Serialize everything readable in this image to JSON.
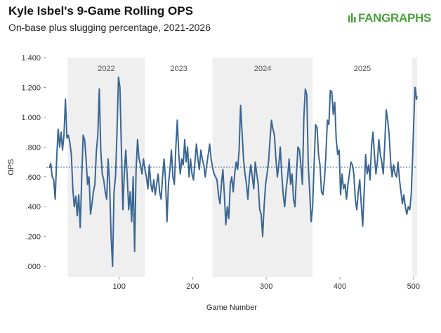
{
  "header": {
    "title": "Kyle Isbel's 9-Game Rolling OPS",
    "subtitle": "On-base plus slugging percentage, 2021-2026",
    "logo_fan": "FAN",
    "logo_graphs": "GRAPHS"
  },
  "colors": {
    "line": "#3a6693",
    "band": "#efefef",
    "average": "#3a6693",
    "logo": "#4ca13c"
  },
  "chart_data": {
    "type": "line",
    "title": "Kyle Isbel's 9-Game Rolling OPS",
    "subtitle": "On-base plus slugging percentage, 2021-2026",
    "xlabel": "Game Number",
    "ylabel": "OPS",
    "xlim": [
      1,
      505
    ],
    "ylim": [
      -0.07,
      1.4
    ],
    "x_ticks": [
      100,
      200,
      300,
      400,
      500
    ],
    "x_tick_labels": [
      "100",
      "200",
      "300",
      "400",
      "500"
    ],
    "y_ticks": [
      0.0,
      0.2,
      0.4,
      0.6,
      0.8,
      1.0,
      1.2,
      1.4
    ],
    "y_tick_labels": [
      ".000",
      ".200",
      ".400",
      ".600",
      ".800",
      "1.000",
      "1.200",
      "1.400"
    ],
    "grid": false,
    "league_average": 0.665,
    "seasons": [
      {
        "label": "",
        "start": 1,
        "end": 30,
        "shaded": false
      },
      {
        "label": "2022",
        "start": 30,
        "end": 135,
        "shaded": true
      },
      {
        "label": "2023",
        "start": 135,
        "end": 227,
        "shaded": false
      },
      {
        "label": "2024",
        "start": 227,
        "end": 363,
        "shaded": true
      },
      {
        "label": "2025",
        "start": 363,
        "end": 498,
        "shaded": false
      },
      {
        "label": "",
        "start": 498,
        "end": 505,
        "shaded": true
      }
    ],
    "series": [
      {
        "name": "",
        "points": [
          [
            5,
            0.66
          ],
          [
            7,
            0.69
          ],
          [
            9,
            0.6
          ],
          [
            11,
            0.58
          ],
          [
            13,
            0.45
          ],
          [
            15,
            0.72
          ],
          [
            17,
            0.92
          ],
          [
            19,
            0.8
          ],
          [
            21,
            0.9
          ],
          [
            23,
            0.78
          ],
          [
            25,
            0.88
          ],
          [
            27,
            1.12
          ],
          [
            29,
            0.86
          ],
          [
            31,
            0.88
          ],
          [
            33,
            0.83
          ],
          [
            35,
            0.75
          ],
          [
            37,
            0.52
          ],
          [
            39,
            0.4
          ],
          [
            41,
            0.47
          ],
          [
            43,
            0.34
          ],
          [
            45,
            0.48
          ],
          [
            47,
            0.26
          ],
          [
            49,
            0.58
          ],
          [
            51,
            0.88
          ],
          [
            53,
            0.85
          ],
          [
            55,
            0.72
          ],
          [
            57,
            0.55
          ],
          [
            59,
            0.6
          ],
          [
            61,
            0.35
          ],
          [
            63,
            0.42
          ],
          [
            65,
            0.5
          ],
          [
            67,
            0.55
          ],
          [
            69,
            0.77
          ],
          [
            71,
            0.88
          ],
          [
            73,
            1.19
          ],
          [
            75,
            0.78
          ],
          [
            77,
            0.62
          ],
          [
            79,
            0.58
          ],
          [
            81,
            0.5
          ],
          [
            83,
            0.45
          ],
          [
            85,
            0.72
          ],
          [
            87,
            0.55
          ],
          [
            89,
            0.2
          ],
          [
            91,
            0.0
          ],
          [
            93,
            0.5
          ],
          [
            95,
            0.6
          ],
          [
            97,
            0.9
          ],
          [
            99,
            1.27
          ],
          [
            101,
            1.2
          ],
          [
            103,
            0.78
          ],
          [
            105,
            0.38
          ],
          [
            107,
            0.62
          ],
          [
            109,
            0.78
          ],
          [
            111,
            0.6
          ],
          [
            113,
            0.38
          ],
          [
            115,
            0.5
          ],
          [
            117,
            0.3
          ],
          [
            119,
            0.6
          ],
          [
            121,
            0.1
          ],
          [
            123,
            0.65
          ],
          [
            125,
            0.85
          ],
          [
            127,
            0.72
          ],
          [
            129,
            0.68
          ],
          [
            131,
            0.62
          ],
          [
            133,
            0.72
          ],
          [
            135,
            0.65
          ],
          [
            137,
            0.6
          ],
          [
            139,
            0.52
          ],
          [
            141,
            0.68
          ],
          [
            143,
            0.55
          ],
          [
            145,
            0.5
          ],
          [
            147,
            0.58
          ],
          [
            149,
            0.48
          ],
          [
            151,
            0.55
          ],
          [
            153,
            0.62
          ],
          [
            155,
            0.5
          ],
          [
            157,
            0.45
          ],
          [
            159,
            0.6
          ],
          [
            161,
            0.72
          ],
          [
            163,
            0.58
          ],
          [
            165,
            0.3
          ],
          [
            167,
            0.55
          ],
          [
            169,
            0.65
          ],
          [
            171,
            0.78
          ],
          [
            173,
            0.6
          ],
          [
            175,
            0.55
          ],
          [
            177,
            0.8
          ],
          [
            179,
            0.98
          ],
          [
            181,
            0.75
          ],
          [
            183,
            0.62
          ],
          [
            185,
            0.72
          ],
          [
            187,
            0.68
          ],
          [
            189,
            0.85
          ],
          [
            191,
            0.7
          ],
          [
            193,
            0.8
          ],
          [
            195,
            0.6
          ],
          [
            197,
            0.72
          ],
          [
            199,
            0.62
          ],
          [
            201,
            0.58
          ],
          [
            203,
            0.7
          ],
          [
            205,
            0.82
          ],
          [
            207,
            0.72
          ],
          [
            209,
            0.65
          ],
          [
            211,
            0.78
          ],
          [
            213,
            0.72
          ],
          [
            215,
            0.68
          ],
          [
            217,
            0.6
          ],
          [
            219,
            0.68
          ],
          [
            221,
            0.75
          ],
          [
            223,
            0.82
          ],
          [
            225,
            0.72
          ],
          [
            227,
            0.66
          ],
          [
            229,
            0.62
          ],
          [
            231,
            0.6
          ],
          [
            233,
            0.58
          ],
          [
            235,
            0.48
          ],
          [
            237,
            0.42
          ],
          [
            239,
            0.55
          ],
          [
            241,
            0.65
          ],
          [
            243,
            0.48
          ],
          [
            245,
            0.28
          ],
          [
            247,
            0.4
          ],
          [
            249,
            0.32
          ],
          [
            251,
            0.55
          ],
          [
            253,
            0.6
          ],
          [
            255,
            0.5
          ],
          [
            257,
            0.62
          ],
          [
            259,
            0.7
          ],
          [
            261,
            0.65
          ],
          [
            263,
            0.78
          ],
          [
            265,
            1.08
          ],
          [
            267,
            0.9
          ],
          [
            269,
            0.72
          ],
          [
            271,
            0.62
          ],
          [
            273,
            0.55
          ],
          [
            275,
            0.45
          ],
          [
            277,
            0.6
          ],
          [
            279,
            0.68
          ],
          [
            281,
            0.6
          ],
          [
            283,
            0.52
          ],
          [
            285,
            0.7
          ],
          [
            287,
            0.62
          ],
          [
            289,
            0.55
          ],
          [
            291,
            0.38
          ],
          [
            293,
            0.35
          ],
          [
            295,
            0.2
          ],
          [
            297,
            0.4
          ],
          [
            299,
            0.55
          ],
          [
            301,
            0.62
          ],
          [
            303,
            0.7
          ],
          [
            305,
            0.85
          ],
          [
            307,
            0.98
          ],
          [
            309,
            0.92
          ],
          [
            311,
            0.88
          ],
          [
            313,
            0.72
          ],
          [
            315,
            0.6
          ],
          [
            317,
            0.68
          ],
          [
            319,
            0.8
          ],
          [
            321,
            0.62
          ],
          [
            323,
            0.48
          ],
          [
            325,
            0.4
          ],
          [
            327,
            0.52
          ],
          [
            329,
            0.6
          ],
          [
            331,
            0.72
          ],
          [
            333,
            0.55
          ],
          [
            335,
            0.62
          ],
          [
            337,
            0.45
          ],
          [
            339,
            0.4
          ],
          [
            341,
            0.62
          ],
          [
            343,
            0.8
          ],
          [
            345,
            0.78
          ],
          [
            347,
            0.68
          ],
          [
            349,
            0.55
          ],
          [
            351,
            1.0
          ],
          [
            353,
            1.19
          ],
          [
            355,
            1.15
          ],
          [
            357,
            0.68
          ],
          [
            359,
            0.5
          ],
          [
            361,
            0.3
          ],
          [
            363,
            0.4
          ],
          [
            365,
            0.68
          ],
          [
            367,
            0.95
          ],
          [
            369,
            0.93
          ],
          [
            371,
            0.75
          ],
          [
            373,
            0.68
          ],
          [
            375,
            0.5
          ],
          [
            377,
            0.48
          ],
          [
            379,
            0.58
          ],
          [
            381,
            0.75
          ],
          [
            383,
            0.98
          ],
          [
            385,
            0.95
          ],
          [
            387,
            1.18
          ],
          [
            389,
            1.17
          ],
          [
            391,
            1.02
          ],
          [
            393,
            1.1
          ],
          [
            395,
            0.85
          ],
          [
            397,
            0.75
          ],
          [
            399,
            0.78
          ],
          [
            401,
            0.48
          ],
          [
            403,
            0.62
          ],
          [
            405,
            0.52
          ],
          [
            407,
            0.55
          ],
          [
            409,
            0.45
          ],
          [
            411,
            0.55
          ],
          [
            413,
            0.62
          ],
          [
            415,
            0.7
          ],
          [
            417,
            0.68
          ],
          [
            419,
            0.62
          ],
          [
            421,
            0.45
          ],
          [
            423,
            0.38
          ],
          [
            425,
            0.5
          ],
          [
            427,
            0.58
          ],
          [
            429,
            0.42
          ],
          [
            431,
            0.27
          ],
          [
            433,
            0.5
          ],
          [
            435,
            0.75
          ],
          [
            437,
            0.62
          ],
          [
            439,
            0.68
          ],
          [
            441,
            0.58
          ],
          [
            443,
            0.8
          ],
          [
            445,
            0.9
          ],
          [
            447,
            0.75
          ],
          [
            449,
            0.62
          ],
          [
            451,
            0.7
          ],
          [
            453,
            0.85
          ],
          [
            455,
            0.75
          ],
          [
            457,
            0.7
          ],
          [
            459,
            0.62
          ],
          [
            461,
            0.82
          ],
          [
            463,
            1.05
          ],
          [
            465,
            0.98
          ],
          [
            467,
            0.88
          ],
          [
            469,
            0.7
          ],
          [
            471,
            0.6
          ],
          [
            473,
            0.68
          ],
          [
            475,
            0.62
          ],
          [
            477,
            0.6
          ],
          [
            479,
            0.7
          ],
          [
            481,
            0.58
          ],
          [
            483,
            0.5
          ],
          [
            485,
            0.42
          ],
          [
            487,
            0.48
          ],
          [
            489,
            0.4
          ],
          [
            491,
            0.35
          ],
          [
            493,
            0.4
          ],
          [
            495,
            0.38
          ],
          [
            497,
            0.48
          ],
          [
            499,
            0.75
          ],
          [
            501,
            1.05
          ],
          [
            502,
            1.2
          ],
          [
            503,
            1.18
          ],
          [
            504,
            1.12
          ],
          [
            505,
            1.14
          ]
        ]
      }
    ]
  }
}
